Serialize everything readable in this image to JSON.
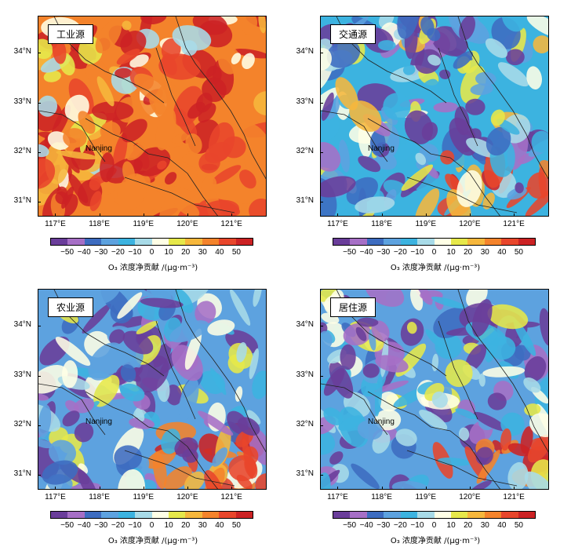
{
  "chart_data": [
    {
      "type": "heatmap",
      "title": "工业源",
      "city_label": "Nanjing",
      "y_ticks": [
        "34°N",
        "33°N",
        "32°N",
        "31°N"
      ],
      "x_ticks": [
        "117°E",
        "118°E",
        "119°E",
        "120°E",
        "121°E"
      ],
      "colorbar_ticks": [
        "−50",
        "−40",
        "−30",
        "−20",
        "−10",
        "0",
        "10",
        "20",
        "30",
        "40",
        "50"
      ],
      "colorbar_label": "O₃ 浓度净贡献 /(μg·m⁻³)",
      "dominant_value": 35,
      "value_range": [
        -50,
        50
      ]
    },
    {
      "type": "heatmap",
      "title": "交通源",
      "city_label": "Nanjing",
      "y_ticks": [
        "34°N",
        "33°N",
        "32°N",
        "31°N"
      ],
      "x_ticks": [
        "117°E",
        "118°E",
        "119°E",
        "120°E",
        "121°E"
      ],
      "colorbar_ticks": [
        "−50",
        "−40",
        "−30",
        "−20",
        "−10",
        "0",
        "10",
        "20",
        "30",
        "40",
        "50"
      ],
      "colorbar_label": "O₃ 浓度净贡献 /(μg·m⁻³)",
      "dominant_value": -20,
      "value_range": [
        -50,
        50
      ]
    },
    {
      "type": "heatmap",
      "title": "农业源",
      "city_label": "Nanjing",
      "y_ticks": [
        "34°N",
        "33°N",
        "32°N",
        "31°N"
      ],
      "x_ticks": [
        "117°E",
        "118°E",
        "119°E",
        "120°E",
        "121°E"
      ],
      "colorbar_ticks": [
        "−50",
        "−40",
        "−30",
        "−20",
        "−10",
        "0",
        "10",
        "20",
        "30",
        "40",
        "50"
      ],
      "colorbar_label": "O₃ 浓度净贡献 /(μg·m⁻³)",
      "dominant_value": -25,
      "value_range": [
        -50,
        50
      ]
    },
    {
      "type": "heatmap",
      "title": "居住源",
      "city_label": "Nanjing",
      "y_ticks": [
        "34°N",
        "33°N",
        "32°N",
        "31°N"
      ],
      "x_ticks": [
        "117°E",
        "118°E",
        "119°E",
        "120°E",
        "121°E"
      ],
      "colorbar_ticks": [
        "−50",
        "−40",
        "−30",
        "−20",
        "−10",
        "0",
        "10",
        "20",
        "30",
        "40",
        "50"
      ],
      "colorbar_label": "O₃ 浓度净贡献 /(μg·m⁻³)",
      "dominant_value": -25,
      "value_range": [
        -50,
        50
      ]
    }
  ],
  "colors": {
    "levels": [
      "#6a3d9a",
      "#a66fc6",
      "#3d6cc0",
      "#5da2df",
      "#3cb3e0",
      "#a8dbe8",
      "#ffffe6",
      "#e6e84a",
      "#f6b73c",
      "#f4832b",
      "#e8462b",
      "#cc2224"
    ]
  }
}
